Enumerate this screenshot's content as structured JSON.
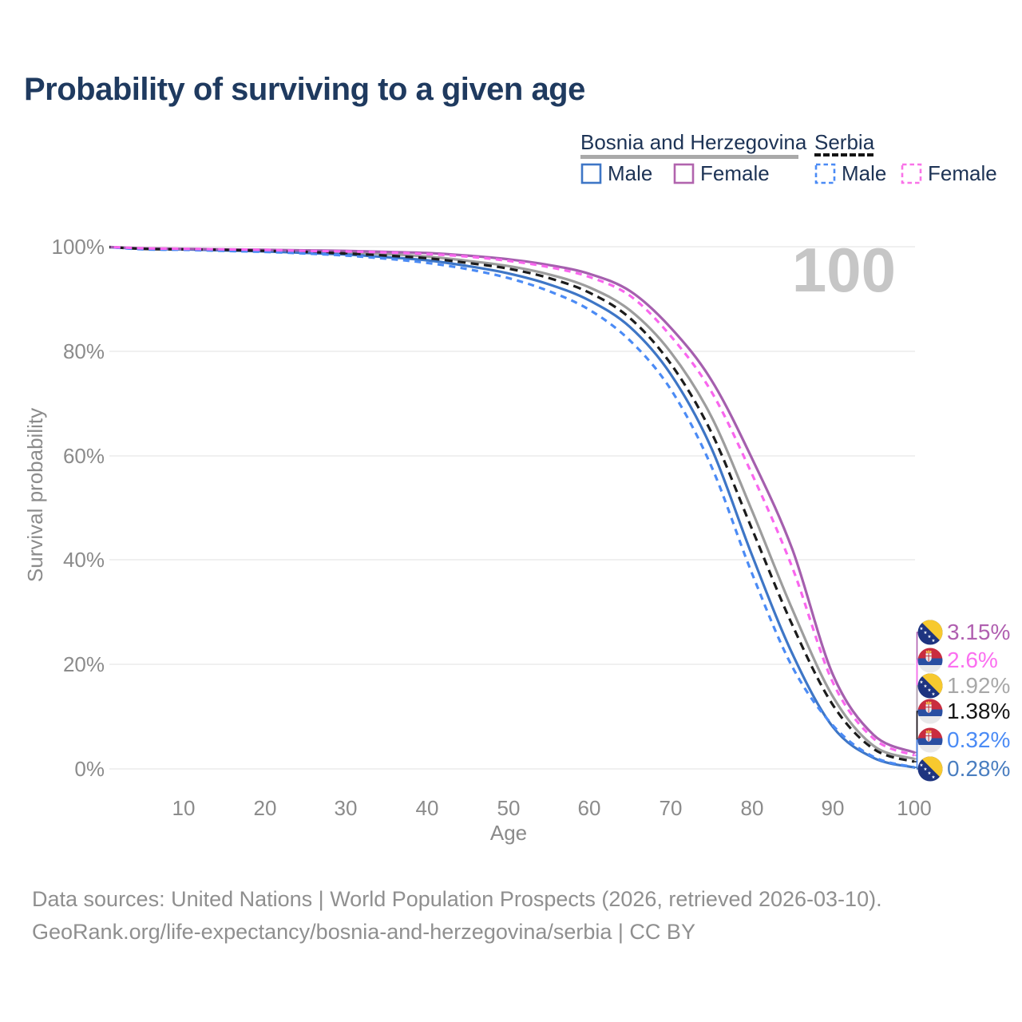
{
  "title": "Probability of surviving to a given age",
  "watermark": "100",
  "legend": {
    "groups": [
      {
        "label": "Bosnia and Herzegovina",
        "line_style": "solid",
        "rule_color": "#a9a9a9",
        "items": [
          {
            "label": "Male",
            "color": "#3e76c6"
          },
          {
            "label": "Female",
            "color": "#b164ae"
          }
        ]
      },
      {
        "label": "Serbia",
        "line_style": "dashed",
        "rule_color": "#141414",
        "items": [
          {
            "label": "Male",
            "color": "#4b8bf5"
          },
          {
            "label": "Female",
            "color": "#f973e8"
          }
        ]
      }
    ]
  },
  "chart_data": {
    "type": "line",
    "title": "Probability of surviving to a given age",
    "xlabel": "Age",
    "ylabel": "Survival probability",
    "xlim": [
      0,
      100
    ],
    "ylim": [
      0,
      100
    ],
    "grid": "horizontal",
    "x_ticks": [
      "10",
      "20",
      "30",
      "40",
      "50",
      "60",
      "70",
      "80",
      "90",
      "100"
    ],
    "y_ticks": [
      "100%",
      "80%",
      "60%",
      "40%",
      "20%",
      "0%"
    ],
    "ages": [
      0,
      5,
      10,
      15,
      20,
      25,
      30,
      35,
      40,
      45,
      50,
      55,
      60,
      65,
      70,
      75,
      80,
      85,
      90,
      95,
      100
    ],
    "series": [
      {
        "name": "Bosnia and Herzegovina — Female",
        "flag": "bosnia-and-herzegovina",
        "color": "#a55fae",
        "dashed": false,
        "end_label": "3.15%",
        "end_label_color": "#b05fb0",
        "values": [
          100,
          99.7,
          99.6,
          99.5,
          99.4,
          99.3,
          99.2,
          99.0,
          98.8,
          98.3,
          97.6,
          96.5,
          94.8,
          91.5,
          84.5,
          74.5,
          59.5,
          42.0,
          18.0,
          6.5,
          3.15
        ]
      },
      {
        "name": "Serbia — Female",
        "flag": "serbia",
        "color": "#f966ee",
        "dashed": true,
        "end_label": "2.6%",
        "end_label_color": "#fb6ff0",
        "values": [
          100,
          99.7,
          99.6,
          99.5,
          99.4,
          99.2,
          99.1,
          98.9,
          98.6,
          98.1,
          97.3,
          96.1,
          94.2,
          90.6,
          82.9,
          72.3,
          56.5,
          38.5,
          16.5,
          5.8,
          2.6
        ]
      },
      {
        "name": "Bosnia and Herzegovina — Both sexes",
        "flag": "bosnia-and-herzegovina",
        "color": "#9d9d9d",
        "dashed": false,
        "end_label": "1.92%",
        "end_label_color": "#a8a8a8",
        "values": [
          100,
          99.6,
          99.5,
          99.4,
          99.3,
          99.1,
          98.9,
          98.6,
          98.1,
          97.3,
          96.3,
          94.7,
          92.2,
          87.8,
          79.8,
          67.5,
          49.5,
          30.5,
          13.8,
          4.4,
          1.92
        ]
      },
      {
        "name": "Serbia — Both sexes",
        "flag": "serbia",
        "color": "#1c1c1c",
        "dashed": true,
        "end_label": "1.38%",
        "end_label_color": "#161616",
        "values": [
          100,
          99.6,
          99.5,
          99.4,
          99.2,
          99.0,
          98.7,
          98.3,
          97.8,
          96.9,
          95.8,
          94.0,
          91.2,
          86.3,
          77.6,
          64.5,
          46.0,
          27.5,
          12.2,
          3.8,
          1.38
        ]
      },
      {
        "name": "Serbia — Male",
        "flag": "serbia",
        "color": "#4b8bf5",
        "dashed": true,
        "end_label": "0.32%",
        "end_label_color": "#4b8bf5",
        "values": [
          100,
          99.5,
          99.4,
          99.2,
          99.0,
          98.7,
          98.3,
          97.7,
          96.9,
          95.7,
          94.0,
          91.5,
          87.9,
          82.0,
          72.7,
          58.0,
          37.5,
          19.5,
          8.3,
          2.3,
          0.32
        ]
      },
      {
        "name": "Bosnia and Herzegovina — Male",
        "flag": "bosnia-and-herzegovina",
        "color": "#3e76c6",
        "dashed": false,
        "end_label": "0.28%",
        "end_label_color": "#4a7ec0",
        "values": [
          100,
          99.6,
          99.5,
          99.3,
          99.1,
          98.8,
          98.5,
          98.0,
          97.4,
          96.3,
          94.9,
          92.8,
          89.7,
          84.6,
          75.6,
          61.5,
          41.0,
          22.0,
          8.0,
          2.1,
          0.28
        ]
      }
    ]
  },
  "footer": {
    "line1": "Data sources: United Nations | World Population Prospects (2026, retrieved 2026-03-10).",
    "line2": "GeoRank.org/life-expectancy/bosnia-and-herzegovina/serbia | CC BY"
  }
}
